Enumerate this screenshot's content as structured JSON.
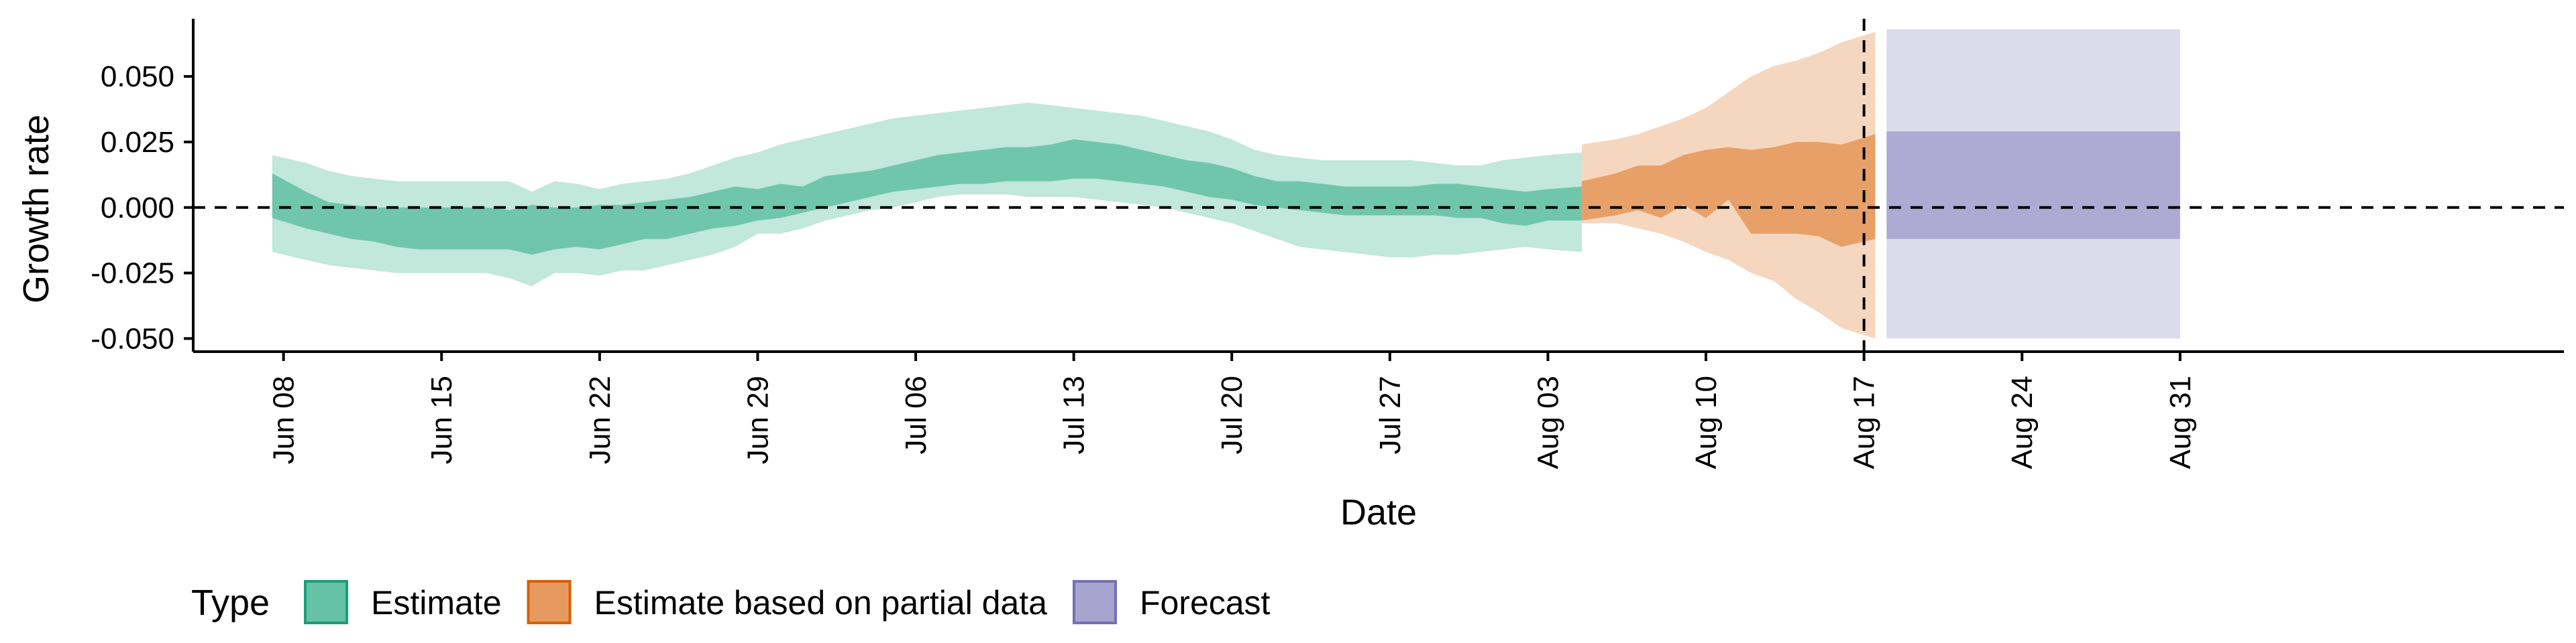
{
  "chart_data": {
    "type": "area",
    "xlabel": "Date",
    "ylabel": "Growth rate",
    "ylim": [
      -0.055,
      0.072
    ],
    "x_range_days": [
      -4,
      101
    ],
    "x_origin_date": "2020-06-08",
    "y_ticks": [
      {
        "value": 0.05,
        "label": "0.050"
      },
      {
        "value": 0.025,
        "label": "0.025"
      },
      {
        "value": 0.0,
        "label": "0.000"
      },
      {
        "value": -0.025,
        "label": "-0.025"
      },
      {
        "value": -0.05,
        "label": "-0.050"
      }
    ],
    "x_ticks": [
      {
        "day": 0,
        "label": "Jun 08"
      },
      {
        "day": 7,
        "label": "Jun 15"
      },
      {
        "day": 14,
        "label": "Jun 22"
      },
      {
        "day": 21,
        "label": "Jun 29"
      },
      {
        "day": 28,
        "label": "Jul 06"
      },
      {
        "day": 35,
        "label": "Jul 13"
      },
      {
        "day": 42,
        "label": "Jul 20"
      },
      {
        "day": 49,
        "label": "Jul 27"
      },
      {
        "day": 56,
        "label": "Aug 03"
      },
      {
        "day": 63,
        "label": "Aug 10"
      },
      {
        "day": 70,
        "label": "Aug 17"
      },
      {
        "day": 77,
        "label": "Aug 24"
      },
      {
        "day": 84,
        "label": "Aug 31"
      }
    ],
    "reference_hline": 0.0,
    "reference_vline_day": 70,
    "series": [
      {
        "name": "Estimate",
        "color": "#66C2A5",
        "stroke": "#1B9E77",
        "x": [
          0,
          1,
          2,
          3,
          4,
          5,
          6,
          7,
          8,
          9,
          10,
          11,
          12,
          13,
          14,
          15,
          16,
          17,
          18,
          19,
          20,
          21,
          22,
          23,
          24,
          25,
          26,
          27,
          28,
          29,
          30,
          31,
          32,
          33,
          34,
          35,
          36,
          37,
          38,
          39,
          40,
          41,
          42,
          43,
          44,
          45,
          46,
          47,
          48,
          49,
          50,
          51,
          52,
          53,
          54,
          55,
          56,
          57
        ],
        "outer_lo": [
          -0.017,
          -0.02,
          -0.022,
          -0.023,
          -0.024,
          -0.025,
          -0.025,
          -0.025,
          -0.025,
          -0.025,
          -0.027,
          -0.03,
          -0.025,
          -0.025,
          -0.026,
          -0.024,
          -0.024,
          -0.022,
          -0.02,
          -0.018,
          -0.015,
          -0.01,
          -0.01,
          -0.008,
          -0.005,
          -0.003,
          -0.001,
          0.0,
          0.002,
          0.004,
          0.005,
          0.005,
          0.005,
          0.004,
          0.004,
          0.004,
          0.003,
          0.002,
          0.001,
          0.0,
          -0.002,
          -0.004,
          -0.006,
          -0.009,
          -0.012,
          -0.015,
          -0.016,
          -0.017,
          -0.018,
          -0.019,
          -0.019,
          -0.018,
          -0.018,
          -0.017,
          -0.016,
          -0.015,
          -0.016,
          -0.017
        ],
        "inner_lo": [
          -0.004,
          -0.008,
          -0.01,
          -0.012,
          -0.013,
          -0.015,
          -0.016,
          -0.016,
          -0.016,
          -0.016,
          -0.016,
          -0.018,
          -0.016,
          -0.015,
          -0.016,
          -0.014,
          -0.012,
          -0.012,
          -0.01,
          -0.008,
          -0.007,
          -0.005,
          -0.004,
          -0.002,
          0.0,
          0.002,
          0.004,
          0.006,
          0.007,
          0.008,
          0.009,
          0.009,
          0.01,
          0.01,
          0.01,
          0.011,
          0.011,
          0.01,
          0.009,
          0.008,
          0.006,
          0.004,
          0.003,
          0.001,
          0.0,
          -0.001,
          -0.002,
          -0.003,
          -0.003,
          -0.003,
          -0.003,
          -0.003,
          -0.004,
          -0.004,
          -0.006,
          -0.007,
          -0.005,
          -0.005
        ],
        "inner_hi": [
          0.013,
          0.006,
          0.002,
          0.001,
          0.0,
          0.0,
          0.0,
          0.0,
          0.0,
          0.0,
          -0.001,
          0.001,
          0.0,
          0.0,
          0.001,
          0.001,
          0.002,
          0.003,
          0.004,
          0.006,
          0.008,
          0.007,
          0.009,
          0.008,
          0.012,
          0.013,
          0.014,
          0.016,
          0.018,
          0.02,
          0.021,
          0.022,
          0.023,
          0.023,
          0.024,
          0.026,
          0.025,
          0.024,
          0.022,
          0.02,
          0.018,
          0.017,
          0.015,
          0.012,
          0.01,
          0.01,
          0.009,
          0.008,
          0.008,
          0.008,
          0.008,
          0.009,
          0.009,
          0.008,
          0.007,
          0.006,
          0.007,
          0.008
        ],
        "outer_hi": [
          0.02,
          0.017,
          0.014,
          0.012,
          0.011,
          0.01,
          0.01,
          0.01,
          0.01,
          0.01,
          0.01,
          0.006,
          0.01,
          0.009,
          0.007,
          0.009,
          0.01,
          0.011,
          0.013,
          0.016,
          0.019,
          0.021,
          0.024,
          0.026,
          0.028,
          0.03,
          0.032,
          0.034,
          0.035,
          0.036,
          0.037,
          0.038,
          0.039,
          0.04,
          0.039,
          0.038,
          0.037,
          0.036,
          0.035,
          0.033,
          0.031,
          0.029,
          0.026,
          0.022,
          0.02,
          0.019,
          0.018,
          0.018,
          0.018,
          0.018,
          0.018,
          0.017,
          0.016,
          0.016,
          0.018,
          0.019,
          0.02,
          0.021
        ]
      },
      {
        "name": "Estimate based on partial data",
        "color": "#E79A5F",
        "stroke": "#D95F02",
        "x": [
          58,
          59,
          60,
          61,
          62,
          63,
          64,
          65,
          66,
          67,
          68,
          69,
          70
        ],
        "outer_lo": [
          -0.006,
          -0.006,
          -0.008,
          -0.01,
          -0.013,
          -0.017,
          -0.02,
          -0.025,
          -0.028,
          -0.035,
          -0.04,
          -0.046,
          -0.05
        ],
        "inner_lo": [
          -0.005,
          -0.003,
          -0.001,
          -0.004,
          0.001,
          -0.004,
          0.003,
          -0.01,
          -0.01,
          -0.01,
          -0.011,
          -0.015,
          -0.012
        ],
        "inner_hi": [
          0.01,
          0.013,
          0.016,
          0.016,
          0.02,
          0.022,
          0.023,
          0.022,
          0.023,
          0.025,
          0.025,
          0.024,
          0.028
        ],
        "outer_hi": [
          0.024,
          0.026,
          0.028,
          0.031,
          0.034,
          0.038,
          0.044,
          0.05,
          0.054,
          0.056,
          0.059,
          0.063,
          0.067
        ]
      },
      {
        "name": "Forecast",
        "color": "#A8A4D0",
        "stroke": "#7570B3",
        "x": [
          71,
          84
        ],
        "outer_lo": [
          -0.05,
          -0.05
        ],
        "inner_lo": [
          -0.012,
          -0.012
        ],
        "inner_hi": [
          0.029,
          0.029
        ],
        "outer_hi": [
          0.068,
          0.068
        ]
      }
    ],
    "legend": {
      "title": "Type",
      "placement": "bottom-left",
      "items": [
        {
          "label": "Estimate",
          "fill": "#66C2A5",
          "stroke": "#1B9E77"
        },
        {
          "label": "Estimate based on partial data",
          "fill": "#E79A5F",
          "stroke": "#D95F02"
        },
        {
          "label": "Forecast",
          "fill": "#A8A4D0",
          "stroke": "#7570B3"
        }
      ]
    }
  }
}
